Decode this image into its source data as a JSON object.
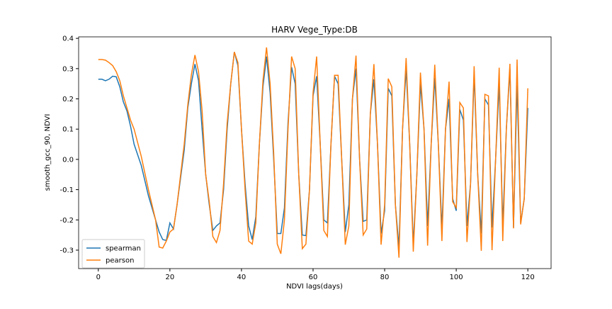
{
  "chart_data": {
    "type": "line",
    "title": "HARV Vege_Type:DB",
    "x_label": "NDVI lags(days)",
    "y_label": "smooth_gcc_90, NDVI",
    "x": [
      0,
      1,
      2,
      3,
      4,
      5,
      6,
      7,
      8,
      9,
      10,
      12,
      14,
      16,
      17,
      18,
      19,
      20,
      21,
      22,
      24,
      25,
      26,
      27,
      28,
      29,
      30,
      31,
      32,
      33,
      34,
      35,
      36,
      37,
      38,
      39,
      40,
      41,
      42,
      43,
      44,
      45,
      46,
      47,
      48,
      49,
      50,
      51,
      52,
      53,
      54,
      55,
      56,
      57,
      58,
      59,
      60,
      61,
      62,
      63,
      64,
      65,
      66,
      67,
      68,
      69,
      70,
      71,
      72,
      73,
      74,
      75,
      76,
      77,
      78,
      79,
      80,
      81,
      82,
      83,
      84,
      85,
      86,
      87,
      88,
      89,
      90,
      91,
      92,
      93,
      94,
      95,
      96,
      97,
      98,
      99,
      100,
      101,
      102,
      103,
      104,
      105,
      106,
      107,
      108,
      109,
      110,
      111,
      112,
      113,
      114,
      115,
      116,
      117,
      118,
      119,
      120
    ],
    "series": [
      {
        "name": "spearman",
        "color": "#1f77b4",
        "values": [
          0.265,
          0.265,
          0.26,
          0.265,
          0.275,
          0.273,
          0.24,
          0.19,
          0.16,
          0.11,
          0.05,
          -0.02,
          -0.12,
          -0.2,
          -0.24,
          -0.265,
          -0.268,
          -0.21,
          -0.23,
          -0.15,
          0.03,
          0.17,
          0.25,
          0.315,
          0.26,
          0.1,
          -0.05,
          -0.15,
          -0.235,
          -0.22,
          -0.21,
          -0.1,
          0.1,
          0.25,
          0.355,
          0.31,
          0.1,
          -0.08,
          -0.22,
          -0.265,
          -0.19,
          0.05,
          0.24,
          0.34,
          0.22,
          0,
          -0.245,
          -0.245,
          -0.16,
          0.12,
          0.305,
          0.25,
          -0.05,
          -0.25,
          -0.252,
          -0.1,
          0.21,
          0.275,
          0.05,
          -0.2,
          -0.21,
          0.05,
          0.275,
          0.25,
          0,
          -0.24,
          -0.15,
          0.2,
          0.3,
          0,
          -0.205,
          -0.2,
          0.15,
          0.265,
          0.05,
          -0.245,
          -0.17,
          0.235,
          0.21,
          -0.15,
          -0.29,
          0.1,
          0.3,
          0.05,
          -0.28,
          -0.05,
          0.25,
          0.1,
          -0.22,
          0.05,
          0.27,
          0.05,
          -0.23,
          0.1,
          0.2,
          -0.13,
          -0.17,
          0.165,
          0.13,
          -0.22,
          -0.08,
          0.28,
          -0.05,
          -0.245,
          0.2,
          0.18,
          -0.225,
          0,
          0.25,
          -0.22,
          0.1,
          0.3,
          -0.225,
          0.25,
          -0.21,
          -0.13,
          0.17
        ]
      },
      {
        "name": "pearson",
        "color": "#ff7f0e",
        "values": [
          0.33,
          0.33,
          0.328,
          0.32,
          0.31,
          0.29,
          0.26,
          0.21,
          0.17,
          0.13,
          0.1,
          0.01,
          -0.1,
          -0.2,
          -0.29,
          -0.293,
          -0.27,
          -0.24,
          -0.23,
          -0.15,
          0.05,
          0.18,
          0.28,
          0.345,
          0.29,
          0.16,
          -0.05,
          -0.14,
          -0.255,
          -0.275,
          -0.235,
          -0.08,
          0.12,
          0.25,
          0.355,
          0.32,
          0.1,
          -0.1,
          -0.27,
          -0.28,
          -0.21,
          0.05,
          0.26,
          0.37,
          0.25,
          0.02,
          -0.28,
          -0.312,
          -0.2,
          0.1,
          0.34,
          0.3,
          -0.05,
          -0.295,
          -0.28,
          -0.1,
          0.22,
          0.34,
          0.05,
          -0.235,
          -0.255,
          0.05,
          0.278,
          0.278,
          0,
          -0.282,
          -0.22,
          0.2,
          0.343,
          0,
          -0.25,
          -0.23,
          0.15,
          0.315,
          0.05,
          -0.282,
          -0.15,
          0.267,
          0.24,
          -0.15,
          -0.325,
          0.1,
          0.335,
          0.05,
          -0.305,
          -0.05,
          0.287,
          0.1,
          -0.285,
          0.05,
          0.313,
          0.05,
          -0.27,
          0.1,
          0.257,
          -0.14,
          -0.16,
          0.188,
          0.17,
          -0.273,
          -0.08,
          0.308,
          -0.05,
          -0.302,
          0.215,
          0.21,
          -0.3,
          0,
          0.303,
          -0.27,
          0.1,
          0.316,
          -0.228,
          0.33,
          -0.215,
          -0.13,
          0.235
        ]
      }
    ],
    "xlim": [
      -5.5,
      126.5
    ],
    "xticks": [
      0,
      20,
      40,
      60,
      80,
      100,
      120
    ],
    "ylim": [
      -0.361,
      0.405
    ],
    "yticks": [
      -0.3,
      -0.2,
      -0.1,
      {
        "value": 0,
        "label": "0.0"
      },
      0.1,
      0.2,
      0.3,
      0.4
    ],
    "legend": "lower left"
  }
}
